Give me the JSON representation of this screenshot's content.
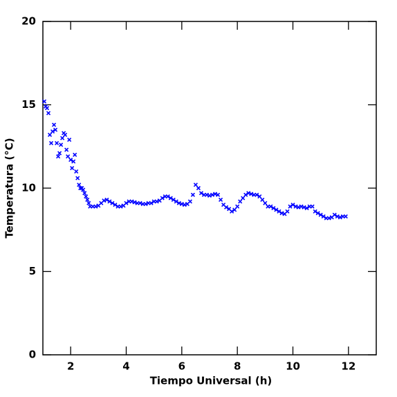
{
  "chart_data": {
    "type": "scatter",
    "xlabel": "Tiempo Universal (h)",
    "ylabel": "Temperatura (°C)",
    "xlim": [
      1,
      13
    ],
    "ylim": [
      0,
      20
    ],
    "xticks": [
      2,
      4,
      6,
      8,
      10,
      12
    ],
    "yticks": [
      0,
      5,
      10,
      15,
      20
    ],
    "series": [
      {
        "color": "#0000ff",
        "x": [
          1.05,
          1.1,
          1.15,
          1.2,
          1.25,
          1.3,
          1.35,
          1.4,
          1.45,
          1.5,
          1.55,
          1.6,
          1.65,
          1.7,
          1.75,
          1.8,
          1.85,
          1.9,
          1.95,
          2.0,
          2.05,
          2.1,
          2.15,
          2.2,
          2.25,
          2.3,
          2.35,
          2.4,
          2.45,
          2.5,
          2.55,
          2.6,
          2.65,
          2.7,
          2.8,
          2.9,
          3.0,
          3.1,
          3.2,
          3.3,
          3.4,
          3.5,
          3.6,
          3.7,
          3.8,
          3.9,
          4.0,
          4.1,
          4.2,
          4.3,
          4.4,
          4.5,
          4.6,
          4.7,
          4.8,
          4.9,
          5.0,
          5.1,
          5.2,
          5.3,
          5.4,
          5.5,
          5.6,
          5.7,
          5.8,
          5.9,
          6.0,
          6.1,
          6.2,
          6.3,
          6.4,
          6.5,
          6.6,
          6.7,
          6.8,
          6.9,
          7.0,
          7.1,
          7.2,
          7.3,
          7.4,
          7.5,
          7.6,
          7.7,
          7.8,
          7.9,
          8.0,
          8.1,
          8.2,
          8.3,
          8.4,
          8.5,
          8.6,
          8.7,
          8.8,
          8.9,
          9.0,
          9.1,
          9.2,
          9.3,
          9.4,
          9.5,
          9.6,
          9.7,
          9.8,
          9.9,
          10.0,
          10.1,
          10.2,
          10.3,
          10.4,
          10.5,
          10.6,
          10.7,
          10.8,
          10.9,
          11.0,
          11.1,
          11.2,
          11.3,
          11.4,
          11.5,
          11.6,
          11.7,
          11.8,
          11.9
        ],
        "values": [
          15.2,
          14.9,
          14.8,
          14.5,
          13.2,
          12.7,
          13.4,
          13.8,
          13.5,
          12.7,
          11.9,
          12.1,
          12.6,
          13.0,
          13.3,
          13.2,
          12.3,
          11.9,
          12.9,
          11.7,
          11.2,
          11.6,
          12.0,
          11.0,
          10.6,
          10.2,
          10.0,
          10.0,
          9.9,
          9.7,
          9.5,
          9.3,
          9.1,
          8.9,
          8.9,
          8.9,
          8.95,
          9.1,
          9.25,
          9.3,
          9.2,
          9.1,
          9.0,
          8.9,
          8.9,
          8.95,
          9.1,
          9.2,
          9.2,
          9.15,
          9.1,
          9.1,
          9.05,
          9.05,
          9.1,
          9.1,
          9.2,
          9.2,
          9.25,
          9.4,
          9.5,
          9.5,
          9.4,
          9.3,
          9.2,
          9.1,
          9.05,
          9.0,
          9.05,
          9.2,
          9.6,
          10.2,
          10.0,
          9.7,
          9.6,
          9.6,
          9.55,
          9.6,
          9.65,
          9.6,
          9.3,
          9.0,
          8.85,
          8.75,
          8.6,
          8.7,
          8.9,
          9.2,
          9.4,
          9.6,
          9.7,
          9.65,
          9.6,
          9.6,
          9.5,
          9.3,
          9.1,
          8.9,
          8.9,
          8.8,
          8.7,
          8.6,
          8.5,
          8.45,
          8.6,
          8.9,
          9.0,
          8.9,
          8.85,
          8.9,
          8.85,
          8.8,
          8.9,
          8.9,
          8.6,
          8.5,
          8.4,
          8.3,
          8.2,
          8.2,
          8.25,
          8.4,
          8.3,
          8.25,
          8.3,
          8.3
        ]
      }
    ]
  }
}
